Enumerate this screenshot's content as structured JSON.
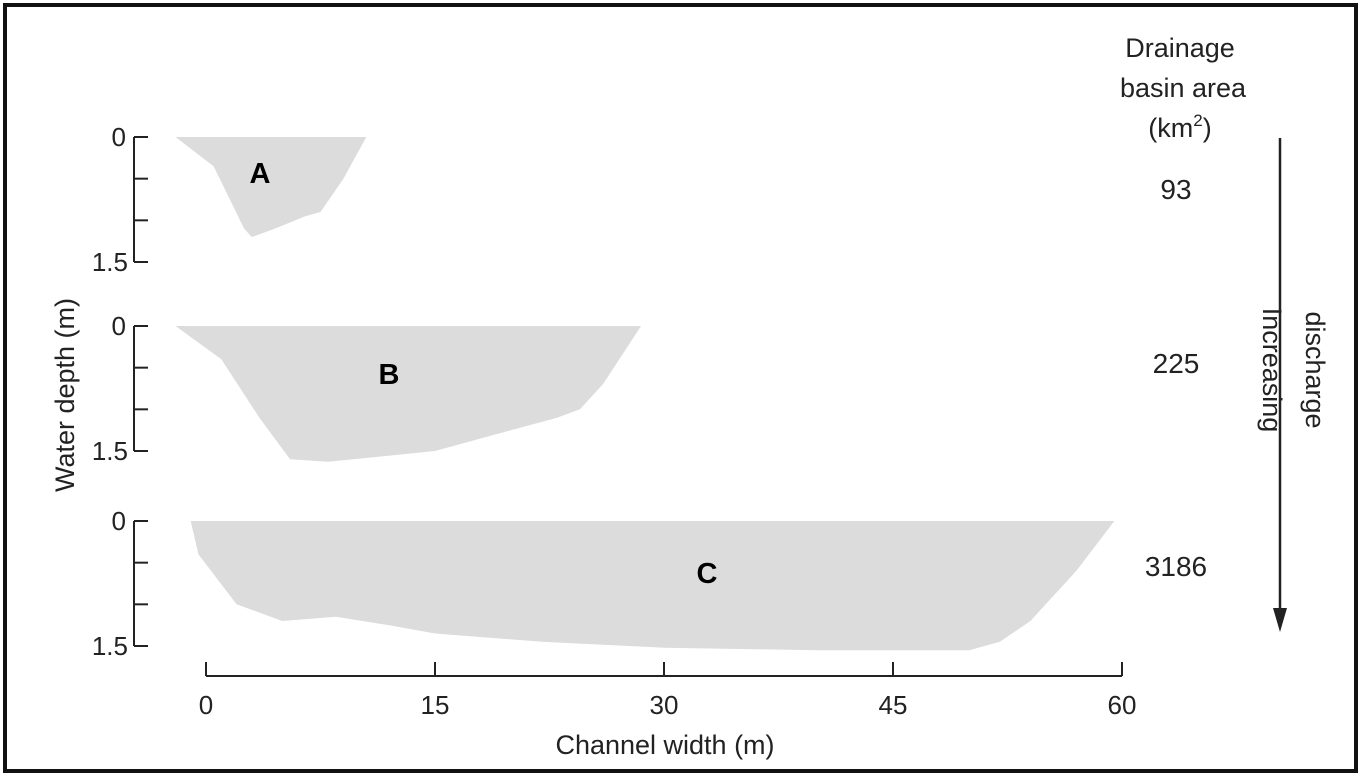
{
  "chart_data": {
    "type": "area",
    "xlabel": "Channel width (m)",
    "ylabel": "Water depth (m)",
    "xlim": [
      0,
      60
    ],
    "x_ticks": [
      "0",
      "15",
      "30",
      "45",
      "60"
    ],
    "y_ticks": [
      "0",
      "1.5"
    ],
    "ylim": [
      0,
      1.5
    ],
    "y_inverted": true,
    "fill_color": "#dcdcdc",
    "header": {
      "line1": "Drainage",
      "line2": "basin area",
      "unit_prefix": "(km",
      "unit_sup": "2",
      "unit_suffix": ")"
    },
    "arrow_label": [
      "Increasing",
      "discharge"
    ],
    "series": [
      {
        "name": "A",
        "drainage_area": "93",
        "profile": [
          [
            -2,
            0
          ],
          [
            0.5,
            0.35
          ],
          [
            2.5,
            1.1
          ],
          [
            3,
            1.2
          ],
          [
            4.5,
            1.1
          ],
          [
            6.5,
            0.95
          ],
          [
            7.5,
            0.9
          ],
          [
            9,
            0.5
          ],
          [
            10.5,
            0
          ]
        ]
      },
      {
        "name": "B",
        "drainage_area": "225",
        "profile": [
          [
            -2,
            0
          ],
          [
            1,
            0.4
          ],
          [
            3.5,
            1.1
          ],
          [
            5.5,
            1.6
          ],
          [
            8,
            1.63
          ],
          [
            15,
            1.5
          ],
          [
            19,
            1.3
          ],
          [
            23,
            1.1
          ],
          [
            24.5,
            1.0
          ],
          [
            26,
            0.7
          ],
          [
            28.5,
            0
          ]
        ]
      },
      {
        "name": "C",
        "drainage_area": "3186",
        "profile": [
          [
            -1,
            0
          ],
          [
            -0.5,
            0.4
          ],
          [
            2,
            1.0
          ],
          [
            5,
            1.2
          ],
          [
            8.5,
            1.15
          ],
          [
            12,
            1.25
          ],
          [
            15,
            1.35
          ],
          [
            22,
            1.45
          ],
          [
            30,
            1.52
          ],
          [
            40,
            1.55
          ],
          [
            50,
            1.55
          ],
          [
            52,
            1.45
          ],
          [
            54,
            1.2
          ],
          [
            57,
            0.6
          ],
          [
            59.5,
            0
          ]
        ]
      }
    ]
  }
}
